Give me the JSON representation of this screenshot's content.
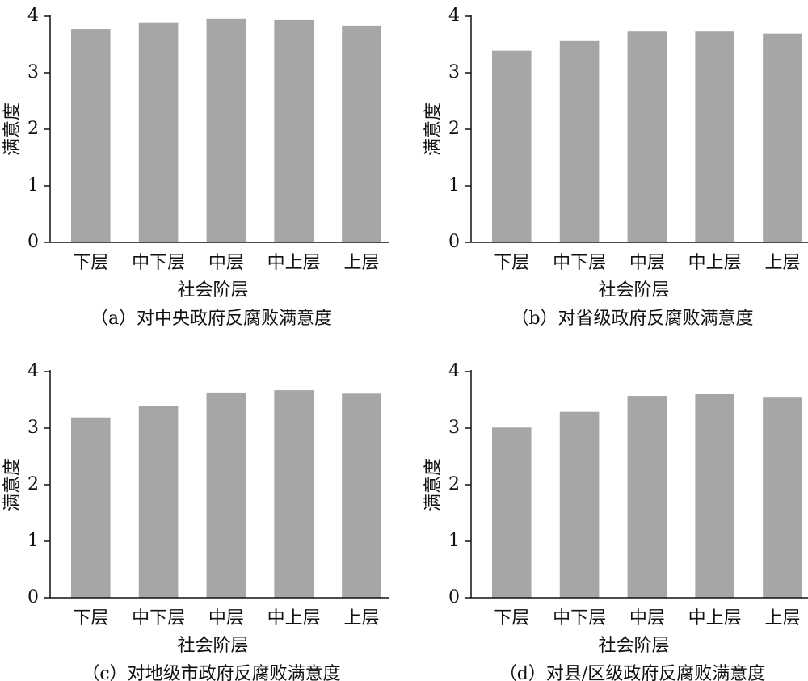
{
  "chart_data": [
    {
      "type": "bar",
      "title": "（a）对中央政府反腐败满意度",
      "x_label": "社会阶层",
      "y_label": "满意度",
      "categories": [
        "下层",
        "中下层",
        "中层",
        "中上层",
        "上层"
      ],
      "values": [
        3.77,
        3.89,
        3.96,
        3.93,
        3.83
      ],
      "color": "#a6a6a6",
      "ylim": [
        0,
        4
      ],
      "yticks": [
        0,
        1,
        2,
        3,
        4
      ]
    },
    {
      "type": "bar",
      "title": "（b）对省级政府反腐败满意度",
      "x_label": "社会阶层",
      "y_label": "满意度",
      "categories": [
        "下层",
        "中下层",
        "中层",
        "中上层",
        "上层"
      ],
      "values": [
        3.39,
        3.56,
        3.74,
        3.74,
        3.69
      ],
      "color": "#a6a6a6",
      "ylim": [
        0,
        4
      ],
      "yticks": [
        0,
        1,
        2,
        3,
        4
      ]
    },
    {
      "type": "bar",
      "title": "（c）对地级市政府反腐败满意度",
      "x_label": "社会阶层",
      "y_label": "满意度",
      "categories": [
        "下层",
        "中下层",
        "中层",
        "中上层",
        "上层"
      ],
      "values": [
        3.19,
        3.39,
        3.63,
        3.67,
        3.61
      ],
      "color": "#a6a6a6",
      "ylim": [
        0,
        4
      ],
      "yticks": [
        0,
        1,
        2,
        3,
        4
      ]
    },
    {
      "type": "bar",
      "title": "（d）对县/区级政府反腐败满意度",
      "x_label": "社会阶层",
      "y_label": "满意度",
      "categories": [
        "下层",
        "中下层",
        "中层",
        "中上层",
        "上层"
      ],
      "values": [
        3.01,
        3.29,
        3.57,
        3.6,
        3.54
      ],
      "color": "#a6a6a6",
      "ylim": [
        0,
        4
      ],
      "yticks": [
        0,
        1,
        2,
        3,
        4
      ]
    }
  ]
}
